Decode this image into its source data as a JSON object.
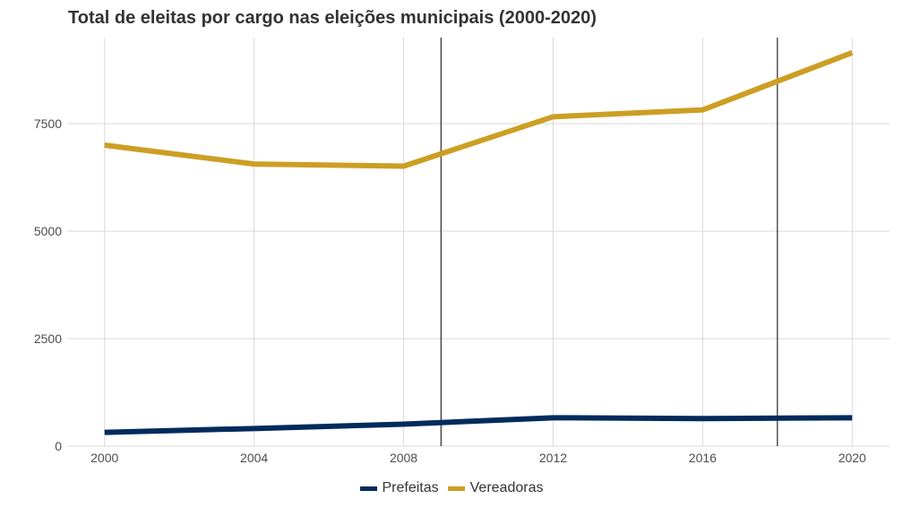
{
  "chart_data": {
    "type": "line",
    "title": "Total de eleitas por cargo nas eleições municipais (2000-2020)",
    "xlabel": "",
    "ylabel": "",
    "x": [
      2000,
      2004,
      2008,
      2012,
      2016,
      2020
    ],
    "x_ticks": [
      "2000",
      "2004",
      "2008",
      "2012",
      "2016",
      "2020"
    ],
    "y_ticks": [
      "0",
      "2500",
      "5000",
      "7500"
    ],
    "y_tick_values": [
      0,
      2500,
      5000,
      7500
    ],
    "xlim": [
      1999,
      2021
    ],
    "ylim": [
      0,
      9500
    ],
    "reference_lines_x": [
      2009,
      2018
    ],
    "grid": true,
    "legend_position": "bottom",
    "series": [
      {
        "name": "Prefeitas",
        "color": "#002b5c",
        "values": [
          320,
          410,
          510,
          660,
          640,
          660
        ]
      },
      {
        "name": "Vereadoras",
        "color": "#cc9e23",
        "values": [
          7000,
          6560,
          6510,
          7660,
          7820,
          9150
        ]
      }
    ]
  }
}
